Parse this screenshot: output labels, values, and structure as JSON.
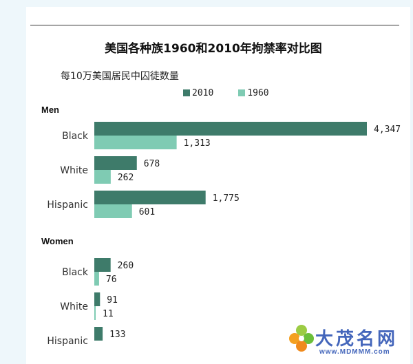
{
  "title": "美国各种族1960和2010年拘禁率对比图",
  "subtitle": "每10万美国居民中囚徒数量",
  "colors": {
    "s2010": "#3e7b6a",
    "s1960": "#7fcbb3"
  },
  "watermark": {
    "name": "大茂名网",
    "url": "www.MDMMM.com"
  },
  "chart_data": {
    "type": "bar",
    "orientation": "horizontal",
    "legend": [
      {
        "name": "2010"
      },
      {
        "name": "1960"
      }
    ],
    "groups": [
      {
        "name": "Men",
        "categories": [
          "Black",
          "White",
          "Hispanic"
        ],
        "series": [
          {
            "name": "2010",
            "values": [
              4347,
              678,
              1775
            ]
          },
          {
            "name": "1960",
            "values": [
              1313,
              262,
              601
            ]
          }
        ]
      },
      {
        "name": "Women",
        "categories": [
          "Black",
          "White",
          "Hispanic"
        ],
        "series": [
          {
            "name": "2010",
            "values": [
              260,
              91,
              133
            ]
          },
          {
            "name": "1960",
            "values": [
              76,
              11,
              null
            ]
          }
        ]
      }
    ]
  }
}
